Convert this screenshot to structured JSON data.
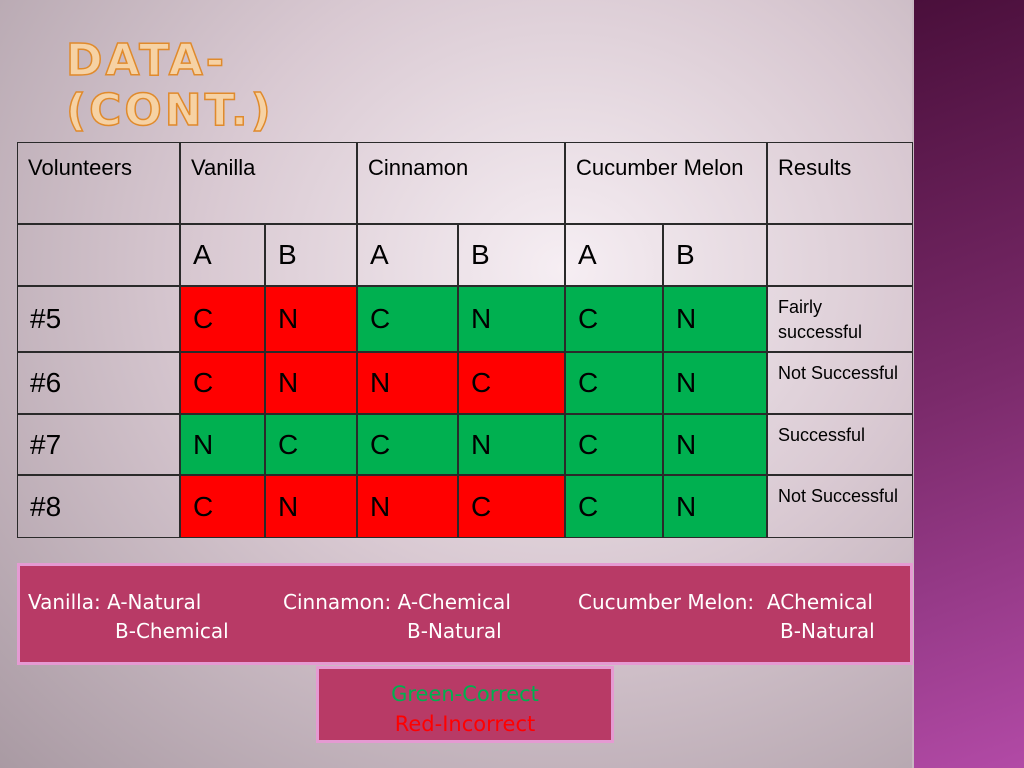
{
  "header": {
    "title": [
      "DATA-",
      "(CONT.)"
    ]
  },
  "table": {
    "columns": [
      "Volunteers",
      "Vanilla",
      "Cinnamon",
      "Cucumber Melon",
      "Results"
    ],
    "subcolumns": [
      "A",
      "B",
      "A",
      "B",
      "A",
      "B"
    ],
    "rows": [
      {
        "label": "#5",
        "cells": [
          {
            "text": "C",
            "color": "#ff0000"
          },
          {
            "text": "N",
            "color": "#ff0000"
          },
          {
            "text": "C",
            "color": "#00b050"
          },
          {
            "text": "N",
            "color": "#00b050"
          },
          {
            "text": "C",
            "color": "#00b050"
          },
          {
            "text": "N",
            "color": "#00b050"
          }
        ],
        "result": "Fairly successful"
      },
      {
        "label": "#6",
        "cells": [
          {
            "text": "C",
            "color": "#ff0000"
          },
          {
            "text": "N",
            "color": "#ff0000"
          },
          {
            "text": "N",
            "color": "#ff0000"
          },
          {
            "text": "C",
            "color": "#ff0000"
          },
          {
            "text": "C",
            "color": "#00b050"
          },
          {
            "text": "N",
            "color": "#00b050"
          }
        ],
        "result": "Not Successful"
      },
      {
        "label": "#7",
        "cells": [
          {
            "text": "N",
            "color": "#00b050"
          },
          {
            "text": "C",
            "color": "#00b050"
          },
          {
            "text": "C",
            "color": "#00b050"
          },
          {
            "text": "N",
            "color": "#00b050"
          },
          {
            "text": "C",
            "color": "#00b050"
          },
          {
            "text": "N",
            "color": "#00b050"
          }
        ],
        "result": "Successful"
      },
      {
        "label": "#8",
        "cells": [
          {
            "text": "C",
            "color": "#ff0000"
          },
          {
            "text": "N",
            "color": "#ff0000"
          },
          {
            "text": "N",
            "color": "#ff0000"
          },
          {
            "text": "C",
            "color": "#ff0000"
          },
          {
            "text": "C",
            "color": "#00b050"
          },
          {
            "text": "N",
            "color": "#00b050"
          }
        ],
        "result": "Not Successful"
      }
    ]
  },
  "legend": [
    {
      "line1": "Vanilla: A-Natural",
      "line2": "B-Chemical"
    },
    {
      "line1": "Cinnamon: A-Chemical",
      "line2": "B-Natural"
    },
    {
      "line1": "Cucumber Melon:  AChemical",
      "line2": "B-Natural"
    }
  ],
  "key": [
    {
      "text": "Green-Correct",
      "color": "#00b050"
    },
    {
      "text": "Red-Incorrect",
      "color": "#ff0000"
    }
  ]
}
